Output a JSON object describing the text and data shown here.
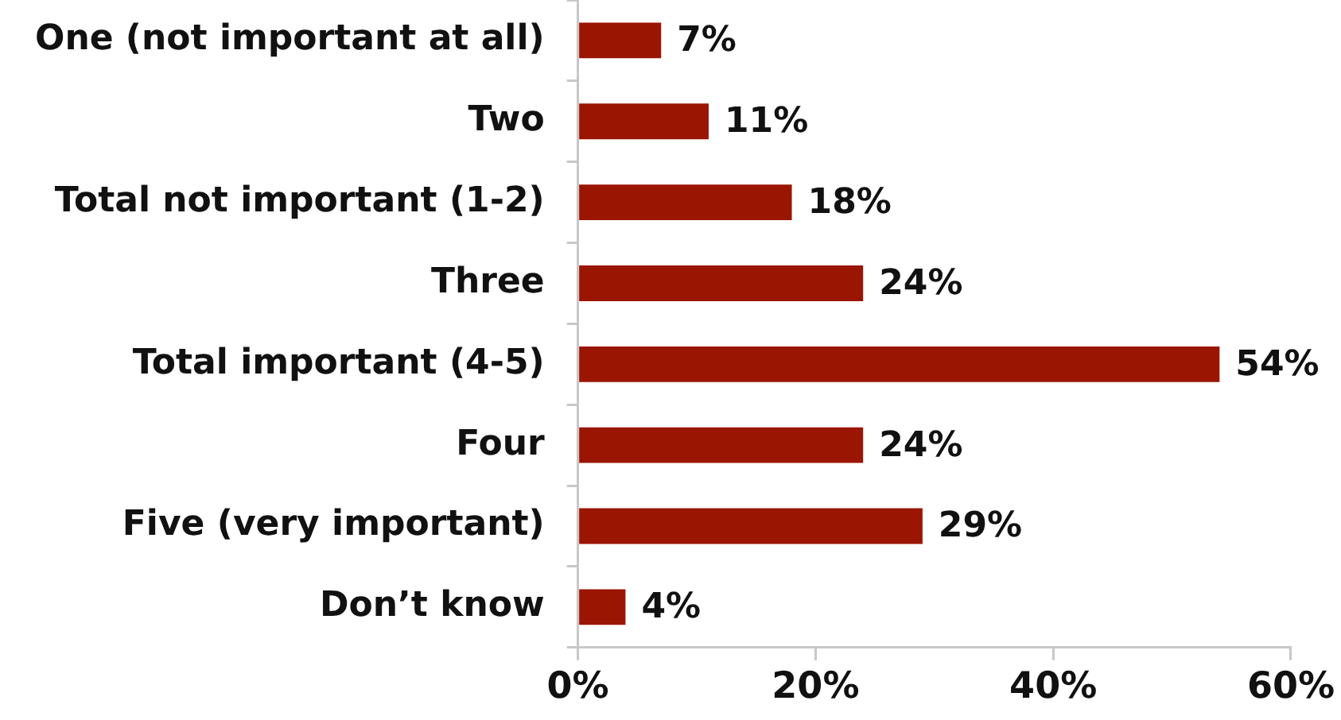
{
  "chart_data": {
    "type": "bar",
    "orientation": "horizontal",
    "categories": [
      "One (not important at all)",
      "Two",
      "Total not important (1-2)",
      "Three",
      "Total important (4-5)",
      "Four",
      "Five (very important)",
      "Don’t know"
    ],
    "values": [
      7,
      11,
      18,
      24,
      54,
      24,
      29,
      4
    ],
    "value_labels": [
      "7%",
      "11%",
      "18%",
      "24%",
      "54%",
      "24%",
      "29%",
      "4%"
    ],
    "color": "#9b1503",
    "xlim": [
      0,
      60
    ],
    "xticks": [
      {
        "value": 0,
        "label": "0%"
      },
      {
        "value": 20,
        "label": "20%"
      },
      {
        "value": 40,
        "label": "40%"
      },
      {
        "value": 60,
        "label": "60%"
      }
    ]
  }
}
